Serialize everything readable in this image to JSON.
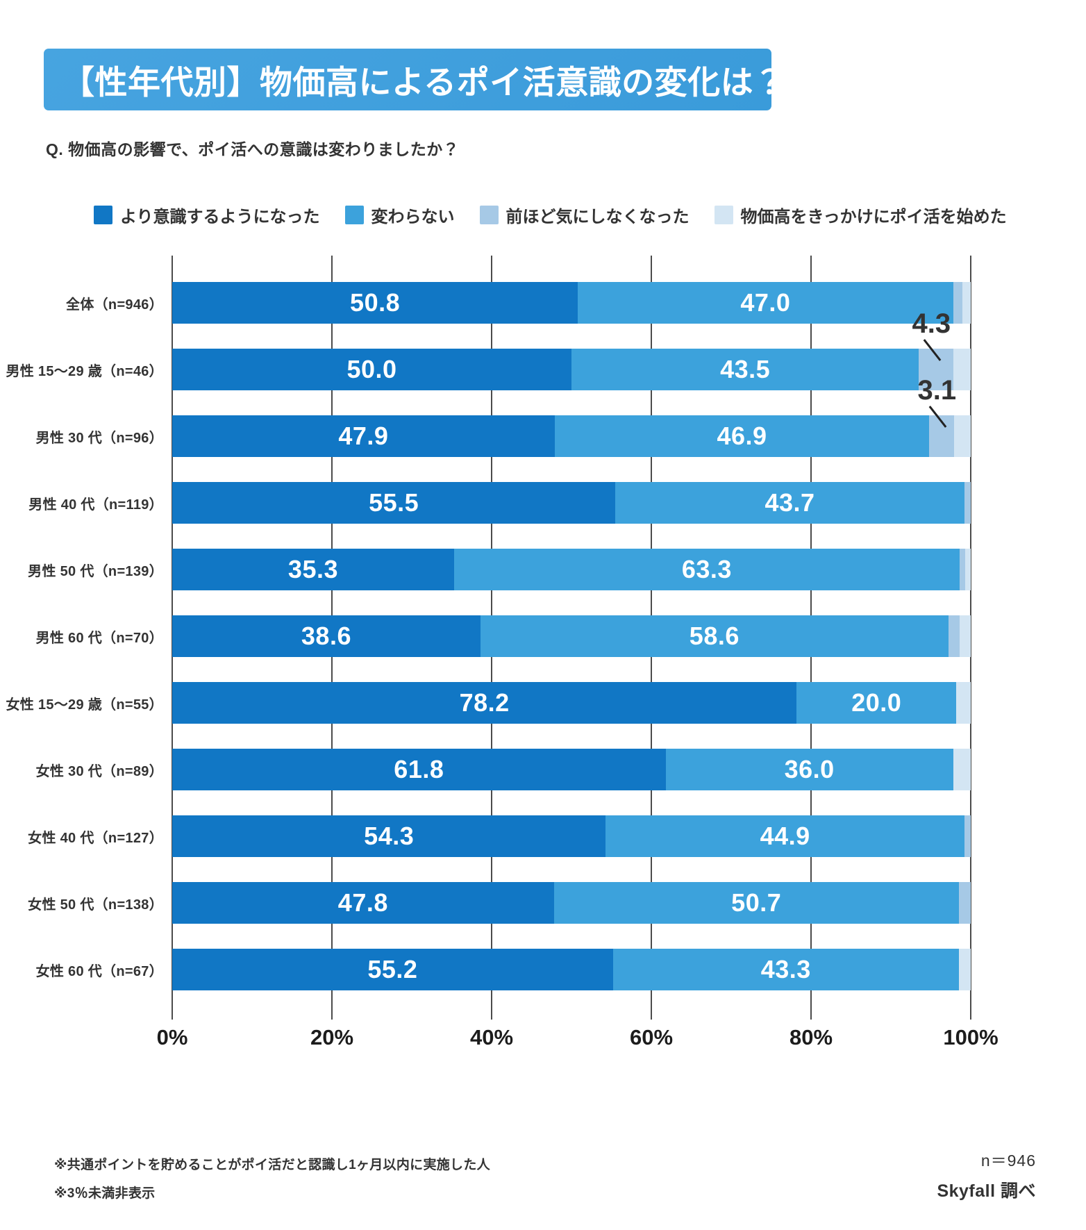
{
  "title": "【性年代別】物価高によるポイ活意識の変化は？",
  "question": "Q. 物価高の影響で、ポイ活への意識は変わりましたか？",
  "colors": {
    "banner_bg": "#3f9edd",
    "series1": "#1177c5",
    "series2": "#3ca2dc",
    "series3": "#a6c9e6",
    "series4": "#d3e5f3",
    "gridline": "#4b4b4b",
    "text": "#333333",
    "bar_value_text": "#ffffff"
  },
  "legend": [
    {
      "label": "より意識するようになった",
      "color": "#1177c5"
    },
    {
      "label": "変わらない",
      "color": "#3ca2dc"
    },
    {
      "label": "前ほど気にしなくなった",
      "color": "#a6c9e6"
    },
    {
      "label": "物価高をきっかけにポイ活を始めた",
      "color": "#d3e5f3"
    }
  ],
  "chart_data": {
    "type": "bar",
    "orientation": "horizontal",
    "stacked": true,
    "xlim": [
      0,
      100
    ],
    "grid": true,
    "legend_position": "top",
    "inline_label_min": 10,
    "note_hidden_below_percent": 3,
    "categories": [
      "全体（n=946）",
      "男性 15～29 歳（n=46）",
      "男性 30 代（n=96）",
      "男性 40 代（n=119）",
      "男性 50 代（n=139）",
      "男性 60 代（n=70）",
      "女性 15～29 歳（n=55）",
      "女性 30 代（n=89）",
      "女性 40 代（n=127）",
      "女性 50 代（n=138）",
      "女性 60 代（n=67）"
    ],
    "series": [
      {
        "name": "より意識するようになった",
        "color": "#1177c5",
        "values": [
          50.8,
          50.0,
          47.9,
          55.5,
          35.3,
          38.6,
          78.2,
          61.8,
          54.3,
          47.8,
          55.2
        ]
      },
      {
        "name": "変わらない",
        "color": "#3ca2dc",
        "values": [
          47.0,
          43.5,
          46.9,
          43.7,
          63.3,
          58.6,
          20.0,
          36.0,
          44.9,
          50.7,
          43.3
        ]
      },
      {
        "name": "前ほど気にしなくなった",
        "color": "#a6c9e6",
        "values": [
          1.2,
          4.3,
          3.1,
          0.8,
          0.7,
          1.4,
          0,
          0,
          0.8,
          1.5,
          0
        ]
      },
      {
        "name": "物価高をきっかけにポイ活を始めた",
        "color": "#d3e5f3",
        "values": [
          1.0,
          2.2,
          2.1,
          0,
          0.7,
          1.4,
          1.8,
          2.2,
          0,
          0,
          1.5
        ]
      }
    ],
    "callouts": [
      {
        "category_index": 1,
        "series_index": 2,
        "label": "4.3"
      },
      {
        "category_index": 2,
        "series_index": 2,
        "label": "3.1"
      }
    ],
    "x_ticks": [
      "0%",
      "20%",
      "40%",
      "60%",
      "80%",
      "100%"
    ]
  },
  "footer": {
    "note1": "※共通ポイントを貯めることがポイ活だと認識し1ヶ月以内に実施した人",
    "note2": "※3％未満非表示",
    "sample_size": "n＝946",
    "credit": "Skyfall 調べ"
  }
}
